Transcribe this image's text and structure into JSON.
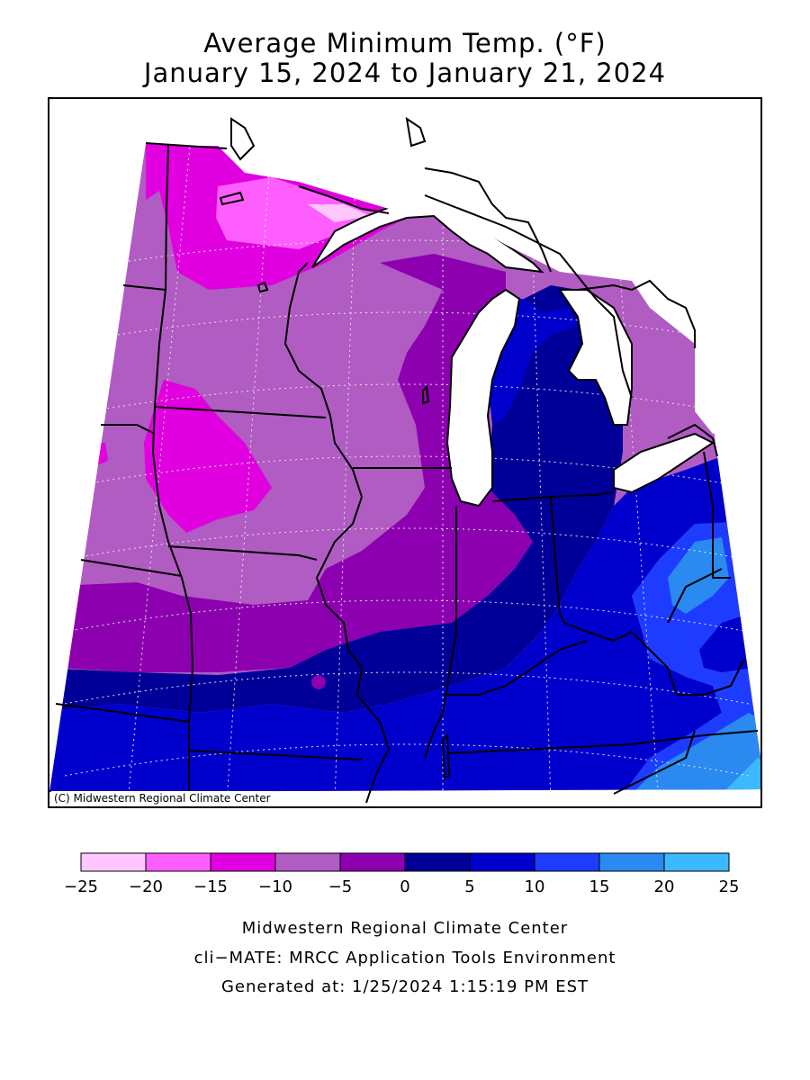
{
  "title": {
    "line1": "Average Minimum Temp. (°F)",
    "line2": "January 15, 2024 to January 21, 2024"
  },
  "copyright": "(C) Midwestern Regional Climate Center",
  "legend": {
    "bins": [
      {
        "min": -25,
        "max": -20,
        "color": "#ffc6ff"
      },
      {
        "min": -20,
        "max": -15,
        "color": "#ff5eff"
      },
      {
        "min": -15,
        "max": -10,
        "color": "#e000e0"
      },
      {
        "min": -10,
        "max": -5,
        "color": "#b05cc2"
      },
      {
        "min": -5,
        "max": 0,
        "color": "#8c00b0"
      },
      {
        "min": 0,
        "max": 5,
        "color": "#000098"
      },
      {
        "min": 5,
        "max": 10,
        "color": "#0000cc"
      },
      {
        "min": 10,
        "max": 15,
        "color": "#1e3cff"
      },
      {
        "min": 15,
        "max": 20,
        "color": "#2a8af0"
      },
      {
        "min": 20,
        "max": 25,
        "color": "#3cb8ff"
      }
    ],
    "tick_labels": [
      "−25",
      "−20",
      "−15",
      "−10",
      "−5",
      "0",
      "5",
      "10",
      "15",
      "20",
      "25"
    ]
  },
  "footer": {
    "line1": "Midwestern Regional Climate Center",
    "line2": "cli−MATE: MRCC Application Tools Environment",
    "line3": "Generated at: 1/25/2024 1:15:19 PM EST"
  }
}
